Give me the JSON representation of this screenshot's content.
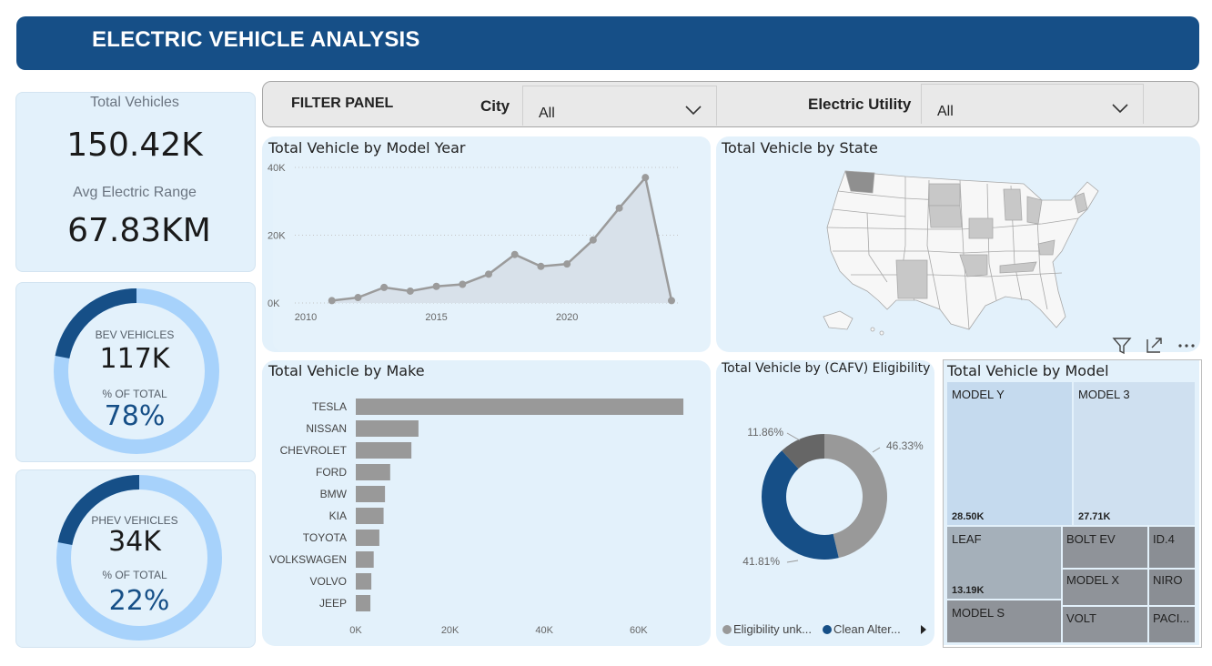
{
  "header": {
    "title": "ELECTRIC VEHICLE ANALYSIS"
  },
  "kpis": {
    "total_vehicles_label": "Total Vehicles",
    "total_vehicles_value": "150.42K",
    "avg_range_label": "Avg Electric Range",
    "avg_range_value": "67.83KM"
  },
  "bev": {
    "label": "BEV VEHICLES",
    "value": "117K",
    "pct_label": "% OF TOTAL",
    "pct": "78%",
    "fraction": 0.78
  },
  "phev": {
    "label": "PHEV VEHICLES",
    "value": "34K",
    "pct_label": "% OF TOTAL",
    "pct": "22%",
    "fraction": 0.22
  },
  "filter": {
    "title": "FILTER PANEL",
    "city_label": "City",
    "city_value": "All",
    "utility_label": "Electric Utility",
    "utility_value": "All"
  },
  "visual_header_icons": [
    "filter-icon",
    "focus-mode-icon",
    "more-options-icon"
  ],
  "colors": {
    "brand": "#164f87",
    "panel": "#e3f1fb",
    "bar": "#999999",
    "donut_light": "#a7d2fb"
  },
  "model_year_chart": {
    "title": "Total Vehicle by Model Year",
    "chart_data": {
      "type": "area",
      "x": [
        2011,
        2012,
        2013,
        2014,
        2015,
        2016,
        2017,
        2018,
        2019,
        2020,
        2021,
        2022,
        2023,
        2024
      ],
      "values": [
        700,
        1600,
        4600,
        3500,
        4900,
        5500,
        8500,
        14300,
        10800,
        11500,
        18600,
        28000,
        37000,
        700
      ],
      "ylim": [
        0,
        40000
      ],
      "y_ticks": [
        "0K",
        "20K",
        "40K"
      ],
      "x_ticks": [
        "2010",
        "2015",
        "2020"
      ],
      "grid": true
    }
  },
  "state_map": {
    "title": "Total Vehicle by State"
  },
  "make_chart": {
    "title": "Total Vehicle by Make",
    "chart_data": {
      "type": "bar",
      "orientation": "horizontal",
      "categories": [
        "TESLA",
        "NISSAN",
        "CHEVROLET",
        "FORD",
        "BMW",
        "KIA",
        "TOYOTA",
        "VOLKSWAGEN",
        "VOLVO",
        "JEEP"
      ],
      "values": [
        69500,
        13300,
        11800,
        7300,
        6200,
        5900,
        5000,
        3800,
        3300,
        3100
      ],
      "xlim": [
        0,
        72000
      ],
      "x_ticks": [
        "0K",
        "20K",
        "40K",
        "60K"
      ]
    }
  },
  "cafv_chart": {
    "title": "Total Vehicle by (CAFV) Eligibility",
    "chart_data": {
      "type": "pie",
      "donut": true,
      "slices": [
        {
          "value": 46.33,
          "label": "46.33%",
          "color": "#999999"
        },
        {
          "value": 41.81,
          "label": "41.81%",
          "color": "#164f87"
        },
        {
          "value": 11.86,
          "label": "11.86%",
          "color": "#666666"
        }
      ]
    },
    "legend": [
      {
        "label": "Eligibility unk...",
        "color": "#999999"
      },
      {
        "label": "Clean Alter...",
        "color": "#164f87"
      }
    ]
  },
  "model_treemap": {
    "title": "Total Vehicle by Model",
    "tiles": [
      {
        "label": "MODEL Y",
        "value": "28.50K"
      },
      {
        "label": "MODEL 3",
        "value": "27.71K"
      },
      {
        "label": "LEAF",
        "value": "13.19K"
      },
      {
        "label": "BOLT EV",
        "value": ""
      },
      {
        "label": "ID.4",
        "value": ""
      },
      {
        "label": "MODEL X",
        "value": ""
      },
      {
        "label": "NIRO",
        "value": ""
      },
      {
        "label": "MODEL S",
        "value": ""
      },
      {
        "label": "VOLT",
        "value": ""
      },
      {
        "label": "PACI...",
        "value": ""
      }
    ]
  }
}
